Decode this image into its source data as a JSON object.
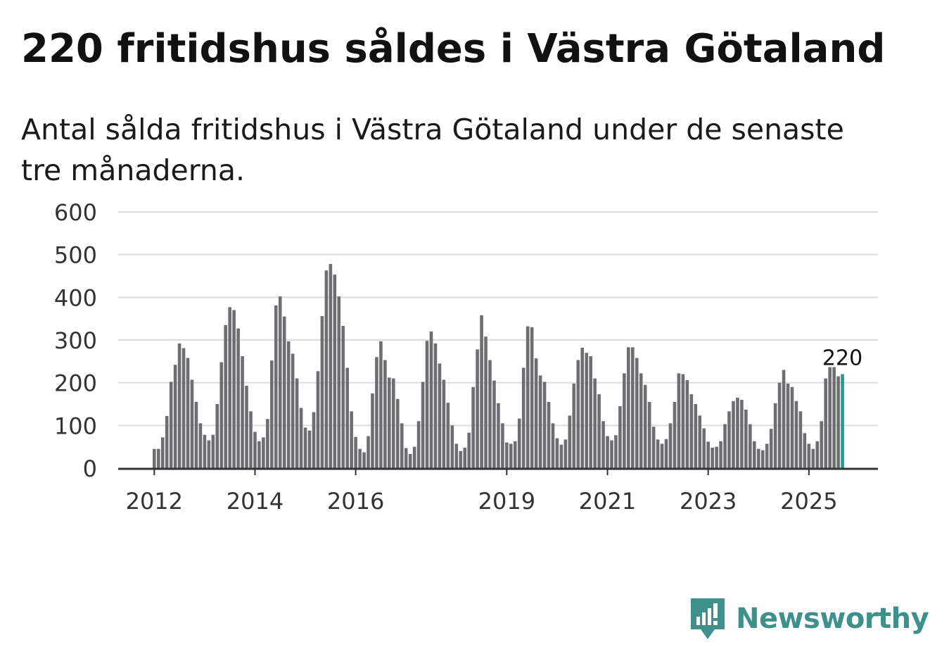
{
  "title": "220 fritidshus såldes i Västra Götaland",
  "subtitle": "Antal sålda fritidshus i Västra Götaland under de senaste tre månaderna.",
  "brand": {
    "name": "Newsworthy",
    "icon": "newsworthy-logo-icon"
  },
  "colors": {
    "bar": "#6e6d72",
    "highlight": "#1a9e9a",
    "grid": "#dcdcdc",
    "axis": "#333333",
    "brand": "#3e918b"
  },
  "chart_data": {
    "type": "bar",
    "title": "220 fritidshus såldes i Västra Götaland",
    "ylim": [
      0,
      600
    ],
    "yticks": [
      "0",
      "100",
      "200",
      "300",
      "400",
      "500",
      "600"
    ],
    "xticks": [
      {
        "label": "2012",
        "index": 0
      },
      {
        "label": "2014",
        "index": 24
      },
      {
        "label": "2016",
        "index": 48
      },
      {
        "label": "2019",
        "index": 84
      },
      {
        "label": "2021",
        "index": 108
      },
      {
        "label": "2023",
        "index": 132
      },
      {
        "label": "2025",
        "index": 156
      }
    ],
    "start": "2012-01",
    "values": [
      45,
      45,
      72,
      122,
      202,
      242,
      292,
      281,
      258,
      207,
      155,
      105,
      78,
      65,
      78,
      150,
      248,
      335,
      377,
      370,
      327,
      262,
      193,
      133,
      85,
      63,
      72,
      115,
      252,
      381,
      402,
      355,
      297,
      268,
      210,
      141,
      95,
      88,
      131,
      227,
      356,
      463,
      478,
      453,
      402,
      333,
      235,
      133,
      73,
      45,
      37,
      75,
      175,
      260,
      297,
      253,
      212,
      210,
      162,
      105,
      47,
      33,
      50,
      110,
      202,
      298,
      320,
      292,
      245,
      207,
      153,
      100,
      57,
      40,
      48,
      83,
      190,
      278,
      358,
      308,
      253,
      205,
      152,
      105,
      60,
      57,
      63,
      116,
      235,
      332,
      330,
      257,
      217,
      202,
      155,
      105,
      70,
      55,
      67,
      123,
      198,
      253,
      282,
      270,
      262,
      210,
      173,
      110,
      75,
      65,
      77,
      145,
      222,
      283,
      283,
      258,
      222,
      195,
      155,
      97,
      67,
      57,
      68,
      105,
      155,
      222,
      220,
      206,
      173,
      150,
      123,
      93,
      62,
      48,
      50,
      63,
      103,
      133,
      157,
      165,
      160,
      137,
      103,
      63,
      45,
      42,
      57,
      92,
      152,
      200,
      230,
      198,
      190,
      157,
      133,
      82,
      57,
      45,
      63,
      110,
      210,
      242,
      242,
      215,
      220
    ],
    "highlight_from": 164,
    "last_label": "220"
  }
}
